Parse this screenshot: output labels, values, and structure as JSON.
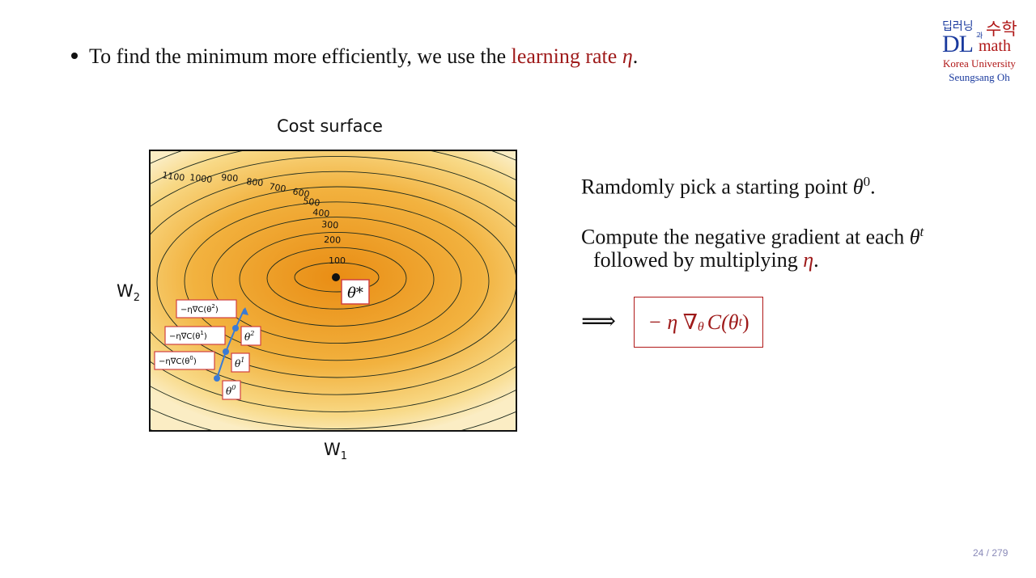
{
  "slide": {
    "bullet_prefix": "To find the minimum more efficiently, we use the ",
    "bullet_highlight": "learning rate ",
    "bullet_eta": "η",
    "bullet_suffix": "."
  },
  "logo": {
    "korean_left": "딥러닝",
    "korean_connector": "과",
    "korean_right": "수학",
    "dl": "DL",
    "math": "math",
    "university": "Korea University",
    "author": "Seungsang Oh"
  },
  "figure": {
    "title": "Cost surface",
    "x_axis": "W",
    "x_axis_sub": "1",
    "y_axis": "W",
    "y_axis_sub": "2",
    "contour_levels": [
      "1100",
      "1000",
      "900",
      "800",
      "700",
      "600",
      "500",
      "400",
      "300",
      "200",
      "100"
    ],
    "minimum_label": "θ*",
    "points": [
      {
        "label_base": "θ",
        "label_sup": "0",
        "step_label": "−η∇C(θ",
        "step_sup": "0",
        "step_close": ")"
      },
      {
        "label_base": "θ",
        "label_sup": "1",
        "step_label": "−η∇C(θ",
        "step_sup": "1",
        "step_close": ")"
      },
      {
        "label_base": "θ",
        "label_sup": "2",
        "step_label": "−η∇C(θ",
        "step_sup": "2",
        "step_close": ")"
      }
    ],
    "colors": {
      "outer": "#fbedc4",
      "inner": "#e98d14",
      "contour": "#1d2a1d",
      "outer_contour": "#3b74c9",
      "path": "#3a7bd5",
      "label_border": "#d04040"
    }
  },
  "steps": {
    "step1_text": "Ramdomly pick a starting point ",
    "step1_theta": "θ",
    "step1_sup": "0",
    "step1_end": ".",
    "step2_text": "Compute the negative gradient at each ",
    "step2_theta": "θ",
    "step2_sup": "t",
    "step3_text": "followed by multiplying ",
    "step3_eta": "η",
    "step3_end": ".",
    "implies": "⟹",
    "formula_main": "− η ∇",
    "formula_sub": "θ",
    "formula_rest": "C(θ",
    "formula_sup": "t",
    "formula_close": ")"
  },
  "footer": {
    "page": "24 / 279"
  }
}
